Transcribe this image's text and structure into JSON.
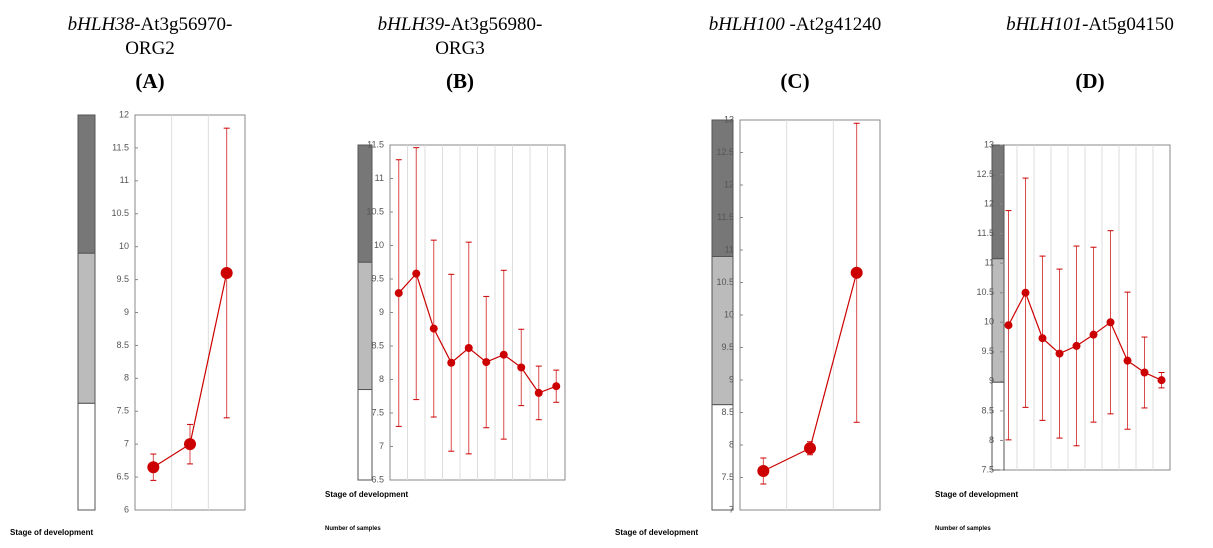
{
  "chart_data": [
    {
      "type": "line",
      "gene": "bHLH38",
      "title": "-At3g56970-",
      "title2": "ORG2",
      "panel": "(A)",
      "x_label": "Stage of development",
      "color": "#cc0000",
      "ylim": [
        6,
        12
      ],
      "yticks": [
        6,
        6.5,
        7,
        7.5,
        8,
        8.5,
        9,
        9.5,
        10,
        10.5,
        11,
        11.5,
        12
      ],
      "values": [
        6.65,
        7.0,
        9.6
      ],
      "errors": [
        0.2,
        0.3,
        2.2
      ]
    },
    {
      "type": "line",
      "gene": "bHLH39",
      "title": "-At3g56980-",
      "title2": "ORG3",
      "panel": "(B)",
      "x_label": "Stage of development",
      "sample_label": "Number of samples",
      "color": "#cc0000",
      "ylim": [
        6.5,
        11.5
      ],
      "yticks": [
        6.5,
        7,
        7.5,
        8,
        8.5,
        9,
        9.5,
        10,
        10.5,
        11,
        11.5
      ],
      "values": [
        9.29,
        9.58,
        8.76,
        8.25,
        8.47,
        8.26,
        8.37,
        8.18,
        7.8,
        7.9
      ],
      "errors": [
        1.99,
        1.88,
        1.32,
        1.32,
        1.58,
        0.98,
        1.26,
        0.57,
        0.4,
        0.24
      ]
    },
    {
      "type": "line",
      "gene": "bHLH100",
      "title": " -At2g41240",
      "panel": "(C)",
      "x_label": "Stage of development",
      "color": "#cc0000",
      "ylim": [
        7,
        13
      ],
      "yticks": [
        7,
        7.5,
        8,
        8.5,
        9,
        9.5,
        10,
        10.5,
        11,
        11.5,
        12,
        12.5,
        13
      ],
      "values": [
        7.6,
        7.95,
        10.65
      ],
      "errors": [
        0.2,
        0.1,
        2.3
      ]
    },
    {
      "type": "line",
      "gene": "bHLH101",
      "title": "-At5g04150",
      "panel": "(D)",
      "x_label": "Stage of development",
      "sample_label": "Number of samples",
      "color": "#cc0000",
      "ylim": [
        7.5,
        13
      ],
      "yticks": [
        7.5,
        8,
        8.5,
        9,
        9.5,
        10,
        10.5,
        11,
        11.5,
        12,
        12.5,
        13
      ],
      "values": [
        9.95,
        10.5,
        9.73,
        9.47,
        9.6,
        9.79,
        10.0,
        9.35,
        9.15,
        9.02
      ],
      "errors": [
        1.94,
        1.94,
        1.39,
        1.43,
        1.69,
        1.48,
        1.55,
        1.16,
        0.6,
        0.13
      ]
    }
  ]
}
